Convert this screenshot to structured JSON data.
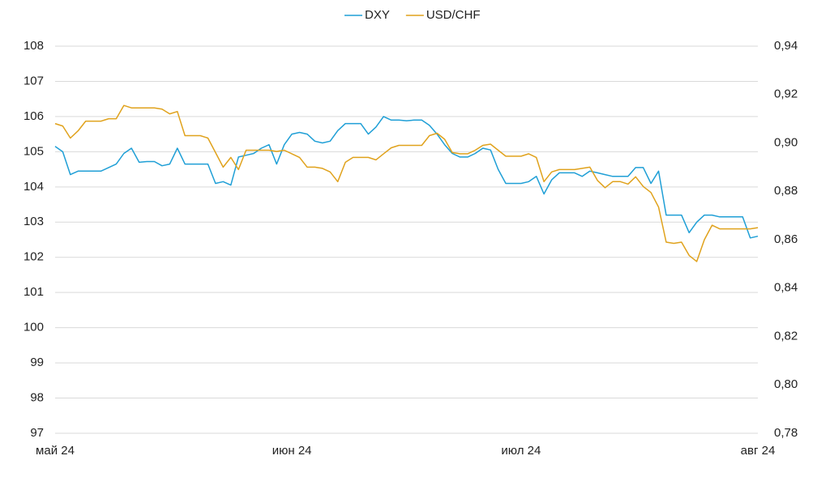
{
  "chart_data": {
    "type": "line",
    "categories": [
      "май 24",
      null,
      null,
      null,
      null,
      null,
      null,
      null,
      null,
      null,
      null,
      null,
      null,
      null,
      null,
      null,
      null,
      null,
      null,
      null,
      null,
      null,
      null,
      null,
      null,
      null,
      null,
      null,
      null,
      null,
      null,
      "июн 24",
      null,
      null,
      null,
      null,
      null,
      null,
      null,
      null,
      null,
      null,
      null,
      null,
      null,
      null,
      null,
      null,
      null,
      null,
      null,
      null,
      null,
      null,
      null,
      null,
      null,
      null,
      null,
      null,
      null,
      "июл 24",
      null,
      null,
      null,
      null,
      null,
      null,
      null,
      null,
      null,
      null,
      null,
      null,
      null,
      null,
      null,
      null,
      null,
      null,
      null,
      null,
      null,
      null,
      null,
      null,
      null,
      null,
      null,
      null,
      null,
      null,
      "авг 24"
    ],
    "series": [
      {
        "name": "DXY",
        "color": "#1f9fd6",
        "values": [
          105.15,
          105.0,
          104.35,
          104.45,
          104.45,
          104.45,
          104.45,
          104.55,
          104.65,
          104.95,
          105.1,
          104.7,
          104.72,
          104.72,
          104.6,
          104.65,
          105.1,
          104.65,
          104.65,
          104.65,
          104.65,
          104.1,
          104.15,
          104.05,
          104.85,
          104.9,
          104.95,
          105.1,
          105.2,
          104.65,
          105.2,
          105.5,
          105.55,
          105.5,
          105.3,
          105.25,
          105.3,
          105.6,
          105.8,
          105.8,
          105.8,
          105.5,
          105.7,
          106.0,
          105.9,
          105.9,
          105.88,
          105.9,
          105.9,
          105.75,
          105.5,
          105.2,
          104.95,
          104.85,
          104.85,
          104.95,
          105.1,
          105.05,
          104.5,
          104.1,
          104.1,
          104.1,
          104.15,
          104.3,
          103.8,
          104.2,
          104.4,
          104.4,
          104.4,
          104.3,
          104.45,
          104.4,
          104.35,
          104.3,
          104.3,
          104.3,
          104.55,
          104.55,
          104.1,
          104.45,
          103.2,
          103.2,
          103.2,
          102.7,
          103.0,
          103.2,
          103.2,
          103.15,
          103.15,
          103.15,
          103.15,
          102.55,
          102.6
        ]
      },
      {
        "name": "USD/CHF",
        "color": "#e0a21c",
        "axis": "y2",
        "values": [
          0.908,
          0.907,
          0.902,
          0.905,
          0.909,
          0.909,
          0.909,
          0.91,
          0.91,
          0.9155,
          0.9145,
          0.9145,
          0.9145,
          0.9145,
          0.914,
          0.912,
          0.913,
          0.903,
          0.903,
          0.903,
          0.902,
          0.896,
          0.89,
          0.894,
          0.889,
          0.897,
          0.897,
          0.897,
          0.897,
          0.8965,
          0.897,
          0.8955,
          0.894,
          0.89,
          0.89,
          0.8895,
          0.888,
          0.884,
          0.892,
          0.894,
          0.894,
          0.894,
          0.893,
          0.8955,
          0.898,
          0.899,
          0.899,
          0.899,
          0.899,
          0.903,
          0.904,
          0.9015,
          0.896,
          0.8955,
          0.8955,
          0.897,
          0.899,
          0.8995,
          0.897,
          0.8945,
          0.8945,
          0.8945,
          0.8955,
          0.894,
          0.884,
          0.888,
          0.889,
          0.889,
          0.889,
          0.8895,
          0.89,
          0.8845,
          0.8815,
          0.884,
          0.884,
          0.883,
          0.886,
          0.882,
          0.8795,
          0.8735,
          0.859,
          0.8585,
          0.859,
          0.8535,
          0.851,
          0.86,
          0.866,
          0.8645,
          0.8645,
          0.8645,
          0.8645,
          0.8645,
          0.865
        ]
      }
    ],
    "ylim": [
      97,
      108
    ],
    "yticks": [
      97,
      98,
      99,
      100,
      101,
      102,
      103,
      104,
      105,
      106,
      107,
      108
    ],
    "y2lim": [
      0.78,
      0.94
    ],
    "y2ticks": [
      {
        "value": 0.78,
        "label": "0,78"
      },
      {
        "value": 0.8,
        "label": "0,80"
      },
      {
        "value": 0.82,
        "label": "0,82"
      },
      {
        "value": 0.84,
        "label": "0,84"
      },
      {
        "value": 0.86,
        "label": "0,86"
      },
      {
        "value": 0.88,
        "label": "0,88"
      },
      {
        "value": 0.9,
        "label": "0,90"
      },
      {
        "value": 0.92,
        "label": "0,92"
      },
      {
        "value": 0.94,
        "label": "0,94"
      }
    ],
    "grid": true,
    "legend": "top"
  }
}
